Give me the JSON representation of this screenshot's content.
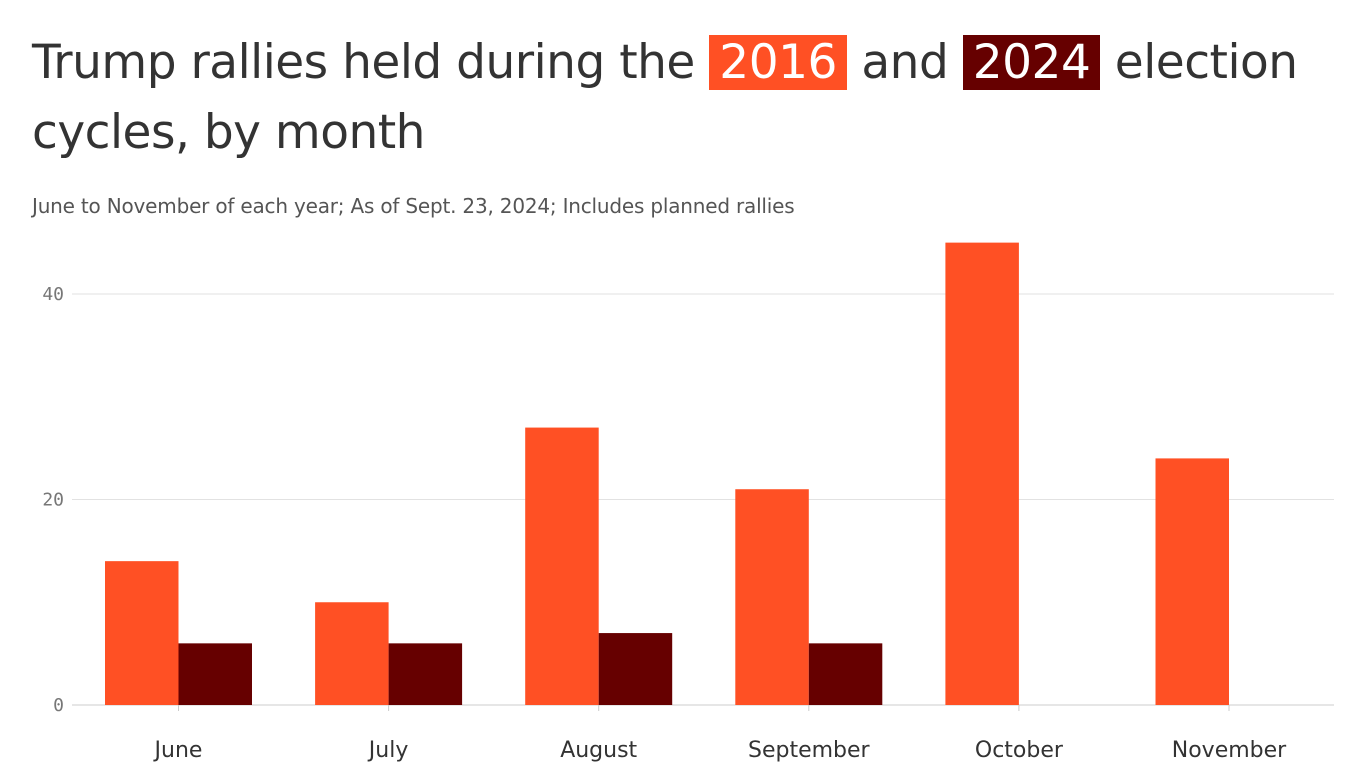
{
  "title": {
    "part1": "Trump rallies held during the ",
    "year1": "2016",
    "part2": " and ",
    "year2": "2024",
    "part3": " election cycles, by month"
  },
  "subtitle": "June to November of each year; As of Sept. 23, 2024; Includes planned rallies",
  "colors": {
    "s2016": "#ff5024",
    "s2024": "#660000"
  },
  "chart_data": {
    "type": "bar",
    "categories": [
      "June",
      "July",
      "August",
      "September",
      "October",
      "November"
    ],
    "series": [
      {
        "name": "2016",
        "values": [
          14,
          10,
          27,
          21,
          45,
          24
        ]
      },
      {
        "name": "2024",
        "values": [
          6,
          6,
          7,
          6,
          null,
          null
        ]
      }
    ],
    "ylim": [
      0,
      45
    ],
    "yticks": [
      0,
      20,
      40
    ],
    "grid": true
  }
}
